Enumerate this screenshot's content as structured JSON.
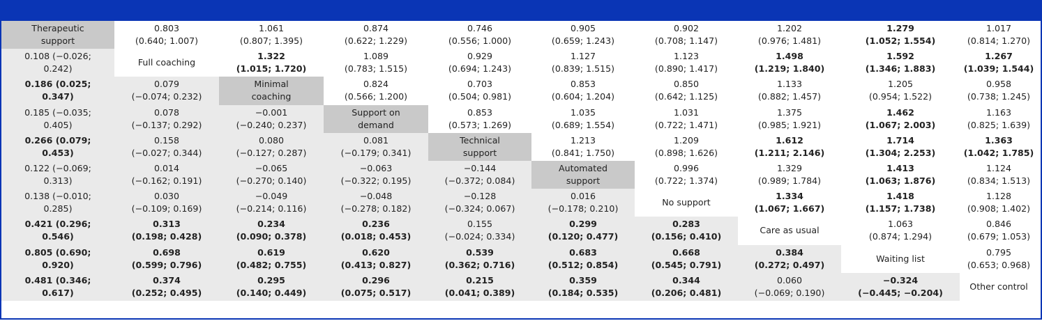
{
  "header": {
    "accent_color": "#0a35b5"
  },
  "treatments": [
    "Therapeutic support",
    "Full coaching",
    "Minimal coaching",
    "Support on demand",
    "Technical support",
    "Automated support",
    "No support",
    "Care as usual",
    "Waiting list",
    "Other control"
  ],
  "diagonal_labels": [
    {
      "text": "Therapeutic\nsupport",
      "shaded": true
    },
    {
      "text": "Full coaching",
      "shaded": false
    },
    {
      "text": "Minimal\ncoaching",
      "shaded": true
    },
    {
      "text": "Support on\ndemand",
      "shaded": true
    },
    {
      "text": "Technical\nsupport",
      "shaded": true
    },
    {
      "text": "Automated\nsupport",
      "shaded": true
    },
    {
      "text": "No support",
      "shaded": false
    },
    {
      "text": "Care as usual",
      "shaded": false
    },
    {
      "text": "Waiting list",
      "shaded": false
    },
    {
      "text": "Other control",
      "shaded": false
    }
  ],
  "rows": [
    [
      null,
      {
        "t": "0.803\n(0.640; 1.007)",
        "b": false
      },
      {
        "t": "1.061\n(0.807; 1.395)",
        "b": false
      },
      {
        "t": "0.874\n(0.622; 1.229)",
        "b": false
      },
      {
        "t": "0.746\n(0.556; 1.000)",
        "b": false
      },
      {
        "t": "0.905\n(0.659; 1.243)",
        "b": false
      },
      {
        "t": "0.902\n(0.708; 1.147)",
        "b": false
      },
      {
        "t": "1.202\n(0.976; 1.481)",
        "b": false
      },
      {
        "t": "1.279\n(1.052; 1.554)",
        "b": true
      },
      {
        "t": "1.017\n(0.814; 1.270)",
        "b": false
      }
    ],
    [
      {
        "t": "0.108 (−0.026;\n0.242)",
        "b": false
      },
      null,
      {
        "t": "1.322\n(1.015; 1.720)",
        "b": true
      },
      {
        "t": "1.089\n(0.783; 1.515)",
        "b": false
      },
      {
        "t": "0.929\n(0.694; 1.243)",
        "b": false
      },
      {
        "t": "1.127\n(0.839; 1.515)",
        "b": false
      },
      {
        "t": "1.123\n(0.890; 1.417)",
        "b": false
      },
      {
        "t": "1.498\n(1.219; 1.840)",
        "b": true
      },
      {
        "t": "1.592\n(1.346; 1.883)",
        "b": true
      },
      {
        "t": "1.267\n(1.039; 1.544)",
        "b": true
      }
    ],
    [
      {
        "t": "0.186 (0.025;\n0.347)",
        "b": true
      },
      {
        "t": "0.079\n(−0.074; 0.232)",
        "b": false
      },
      null,
      {
        "t": "0.824\n(0.566; 1.200)",
        "b": false
      },
      {
        "t": "0.703\n(0.504; 0.981)",
        "b": false
      },
      {
        "t": "0.853\n(0.604; 1.204)",
        "b": false
      },
      {
        "t": "0.850\n(0.642; 1.125)",
        "b": false
      },
      {
        "t": "1.133\n(0.882; 1.457)",
        "b": false
      },
      {
        "t": "1.205\n(0.954; 1.522)",
        "b": false
      },
      {
        "t": "0.958\n(0.738; 1.245)",
        "b": false
      }
    ],
    [
      {
        "t": "0.185 (−0.035;\n0.405)",
        "b": false
      },
      {
        "t": "0.078\n(−0.137; 0.292)",
        "b": false
      },
      {
        "t": "−0.001\n(−0.240; 0.237)",
        "b": false
      },
      null,
      {
        "t": "0.853\n(0.573; 1.269)",
        "b": false
      },
      {
        "t": "1.035\n(0.689; 1.554)",
        "b": false
      },
      {
        "t": "1.031\n(0.722; 1.471)",
        "b": false
      },
      {
        "t": "1.375\n(0.985; 1.921)",
        "b": false
      },
      {
        "t": "1.462\n(1.067; 2.003)",
        "b": true
      },
      {
        "t": "1.163\n(0.825; 1.639)",
        "b": false
      }
    ],
    [
      {
        "t": "0.266 (0.079;\n0.453)",
        "b": true
      },
      {
        "t": "0.158\n(−0.027; 0.344)",
        "b": false
      },
      {
        "t": "0.080\n(−0.127; 0.287)",
        "b": false
      },
      {
        "t": "0.081\n(−0.179; 0.341)",
        "b": false
      },
      null,
      {
        "t": "1.213\n(0.841; 1.750)",
        "b": false
      },
      {
        "t": "1.209\n(0.898; 1.626)",
        "b": false
      },
      {
        "t": "1.612\n(1.211; 2.146)",
        "b": true
      },
      {
        "t": "1.714\n(1.304; 2.253)",
        "b": true
      },
      {
        "t": "1.363\n(1.042; 1.785)",
        "b": true
      }
    ],
    [
      {
        "t": "0.122 (−0.069;\n0.313)",
        "b": false
      },
      {
        "t": "0.014\n(−0.162; 0.191)",
        "b": false
      },
      {
        "t": "−0.065\n(−0.270; 0.140)",
        "b": false
      },
      {
        "t": "−0.063\n(−0.322; 0.195)",
        "b": false
      },
      {
        "t": "−0.144\n(−0.372; 0.084)",
        "b": false
      },
      null,
      {
        "t": "0.996\n(0.722; 1.374)",
        "b": false
      },
      {
        "t": "1.329\n(0.989; 1.784)",
        "b": false
      },
      {
        "t": "1.413\n(1.063; 1.876)",
        "b": true
      },
      {
        "t": "1.124\n(0.834; 1.513)",
        "b": false
      }
    ],
    [
      {
        "t": "0.138 (−0.010;\n0.285)",
        "b": false
      },
      {
        "t": "0.030\n(−0.109; 0.169)",
        "b": false
      },
      {
        "t": "−0.049\n(−0.214; 0.116)",
        "b": false
      },
      {
        "t": "−0.048\n(−0.278; 0.182)",
        "b": false
      },
      {
        "t": "−0.128\n(−0.324; 0.067)",
        "b": false
      },
      {
        "t": "0.016\n(−0.178; 0.210)",
        "b": false
      },
      null,
      {
        "t": "1.334\n(1.067; 1.667)",
        "b": true
      },
      {
        "t": "1.418\n(1.157; 1.738)",
        "b": true
      },
      {
        "t": "1.128\n(0.908; 1.402)",
        "b": false
      }
    ],
    [
      {
        "t": "0.421 (0.296;\n0.546)",
        "b": true
      },
      {
        "t": "0.313\n(0.198; 0.428)",
        "b": true
      },
      {
        "t": "0.234\n(0.090; 0.378)",
        "b": true
      },
      {
        "t": "0.236\n(0.018; 0.453)",
        "b": true
      },
      {
        "t": "0.155\n(−0.024; 0.334)",
        "b": false
      },
      {
        "t": "0.299\n(0.120; 0.477)",
        "b": true
      },
      {
        "t": "0.283\n(0.156; 0.410)",
        "b": true
      },
      null,
      {
        "t": "1.063\n(0.874; 1.294)",
        "b": false
      },
      {
        "t": "0.846\n(0.679; 1.053)",
        "b": false
      }
    ],
    [
      {
        "t": "0.805 (0.690;\n0.920)",
        "b": true
      },
      {
        "t": "0.698\n(0.599; 0.796)",
        "b": true
      },
      {
        "t": "0.619\n(0.482; 0.755)",
        "b": true
      },
      {
        "t": "0.620\n(0.413; 0.827)",
        "b": true
      },
      {
        "t": "0.539\n(0.362; 0.716)",
        "b": true
      },
      {
        "t": "0.683\n(0.512; 0.854)",
        "b": true
      },
      {
        "t": "0.668\n(0.545; 0.791)",
        "b": true
      },
      {
        "t": "0.384\n(0.272; 0.497)",
        "b": true
      },
      null,
      {
        "t": "0.795\n(0.653; 0.968)",
        "b": false
      }
    ],
    [
      {
        "t": "0.481 (0.346;\n0.617)",
        "b": true
      },
      {
        "t": "0.374\n(0.252; 0.495)",
        "b": true
      },
      {
        "t": "0.295\n(0.140; 0.449)",
        "b": true
      },
      {
        "t": "0.296\n(0.075; 0.517)",
        "b": true
      },
      {
        "t": "0.215\n(0.041; 0.389)",
        "b": true
      },
      {
        "t": "0.359\n(0.184; 0.535)",
        "b": true
      },
      {
        "t": "0.344\n(0.206; 0.481)",
        "b": true
      },
      {
        "t": "0.060\n(−0.069; 0.190)",
        "b": false
      },
      {
        "t": "−0.324\n(−0.445; −0.204)",
        "b": true
      },
      null
    ]
  ]
}
